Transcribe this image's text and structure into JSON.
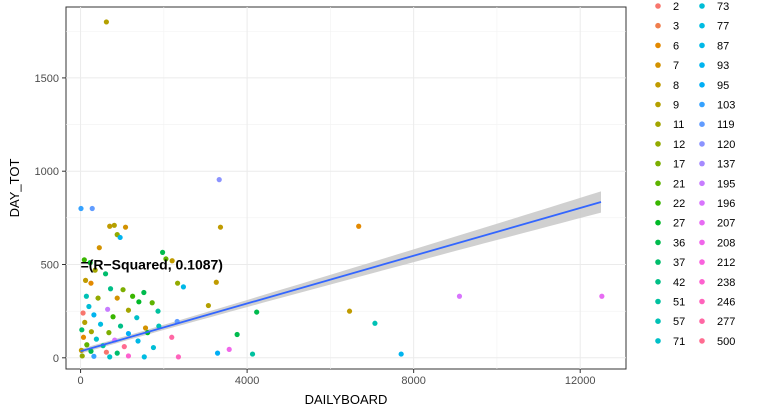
{
  "chart_data": {
    "type": "scatter",
    "title": "",
    "xlabel": "DAILYBOARD",
    "ylabel": "DAY_TOT",
    "xlim": [
      -350,
      13100
    ],
    "ylim": [
      -60,
      1880
    ],
    "x_ticks": [
      0,
      4000,
      8000,
      12000
    ],
    "x_tick_labels": [
      "0",
      "4000",
      "8000",
      "12000"
    ],
    "y_ticks": [
      0,
      500,
      1000,
      1500
    ],
    "y_tick_labels": [
      "0",
      "500",
      "1000",
      "1500"
    ],
    "grid": true,
    "legend_position": "right",
    "annotation": "=(R−Squared, 0.1087)",
    "annotation_pos": [
      0,
      500
    ],
    "regression_line": {
      "x": [
        0,
        12500
      ],
      "y": [
        35,
        835
      ],
      "color": "#3366ff",
      "band_color": "#c8c8c8"
    },
    "legend": {
      "col1": [
        {
          "label": "2",
          "color": "#f8766d"
        },
        {
          "label": "3",
          "color": "#f07e4d"
        },
        {
          "label": "6",
          "color": "#e38900"
        },
        {
          "label": "7",
          "color": "#d39200"
        },
        {
          "label": "8",
          "color": "#c09b00"
        },
        {
          "label": "9",
          "color": "#b4a000"
        },
        {
          "label": "11",
          "color": "#a3a500"
        },
        {
          "label": "12",
          "color": "#93aa00"
        },
        {
          "label": "17",
          "color": "#7cae00"
        },
        {
          "label": "21",
          "color": "#5eb300"
        },
        {
          "label": "22",
          "color": "#39b600"
        },
        {
          "label": "27",
          "color": "#00b928"
        },
        {
          "label": "36",
          "color": "#00bb4e"
        },
        {
          "label": "37",
          "color": "#00bd6c"
        },
        {
          "label": "42",
          "color": "#00bf86"
        },
        {
          "label": "51",
          "color": "#00c19f"
        },
        {
          "label": "57",
          "color": "#00c1b5"
        },
        {
          "label": "71",
          "color": "#00c0c8"
        }
      ],
      "col2": [
        {
          "label": "73",
          "color": "#00bdd6"
        },
        {
          "label": "77",
          "color": "#00bce2"
        },
        {
          "label": "87",
          "color": "#00b8e7"
        },
        {
          "label": "93",
          "color": "#00b4ef"
        },
        {
          "label": "95",
          "color": "#00aef5"
        },
        {
          "label": "103",
          "color": "#35a2ff"
        },
        {
          "label": "119",
          "color": "#619cff"
        },
        {
          "label": "120",
          "color": "#8b93ff"
        },
        {
          "label": "137",
          "color": "#a58aff"
        },
        {
          "label": "195",
          "color": "#c77cff"
        },
        {
          "label": "196",
          "color": "#d874fd"
        },
        {
          "label": "207",
          "color": "#e76bf3"
        },
        {
          "label": "208",
          "color": "#f066ea"
        },
        {
          "label": "212",
          "color": "#f962dd"
        },
        {
          "label": "238",
          "color": "#fd61cf"
        },
        {
          "label": "246",
          "color": "#ff63bc"
        },
        {
          "label": "277",
          "color": "#ff67a4"
        },
        {
          "label": "500",
          "color": "#ff6c91"
        }
      ]
    },
    "points": [
      {
        "x": 620,
        "y": 1800,
        "color": "#b4a000"
      },
      {
        "x": 3330,
        "y": 955,
        "color": "#8b93ff"
      },
      {
        "x": 10,
        "y": 800,
        "color": "#35a2ff"
      },
      {
        "x": 280,
        "y": 800,
        "color": "#619cff"
      },
      {
        "x": 700,
        "y": 705,
        "color": "#c09b00"
      },
      {
        "x": 810,
        "y": 710,
        "color": "#b4a000"
      },
      {
        "x": 1080,
        "y": 700,
        "color": "#d39200"
      },
      {
        "x": 3360,
        "y": 700,
        "color": "#c09b00"
      },
      {
        "x": 6680,
        "y": 705,
        "color": "#e38900"
      },
      {
        "x": 880,
        "y": 660,
        "color": "#93aa00"
      },
      {
        "x": 950,
        "y": 645,
        "color": "#00b4ef"
      },
      {
        "x": 450,
        "y": 590,
        "color": "#d39200"
      },
      {
        "x": 1970,
        "y": 565,
        "color": "#00bb4e"
      },
      {
        "x": 2050,
        "y": 530,
        "color": "#5eb300"
      },
      {
        "x": 2200,
        "y": 520,
        "color": "#c09b00"
      },
      {
        "x": 90,
        "y": 525,
        "color": "#39b600"
      },
      {
        "x": 230,
        "y": 510,
        "color": "#00b928"
      },
      {
        "x": 350,
        "y": 470,
        "color": "#a3a500"
      },
      {
        "x": 600,
        "y": 450,
        "color": "#00bd6c"
      },
      {
        "x": 120,
        "y": 415,
        "color": "#c09b00"
      },
      {
        "x": 250,
        "y": 400,
        "color": "#e38900"
      },
      {
        "x": 2330,
        "y": 400,
        "color": "#93aa00"
      },
      {
        "x": 3260,
        "y": 405,
        "color": "#c09b00"
      },
      {
        "x": 2470,
        "y": 380,
        "color": "#00b8e7"
      },
      {
        "x": 720,
        "y": 370,
        "color": "#00bf86"
      },
      {
        "x": 1020,
        "y": 365,
        "color": "#7cae00"
      },
      {
        "x": 1520,
        "y": 350,
        "color": "#00bb4e"
      },
      {
        "x": 140,
        "y": 330,
        "color": "#00c1b5"
      },
      {
        "x": 420,
        "y": 320,
        "color": "#93aa00"
      },
      {
        "x": 880,
        "y": 320,
        "color": "#d39200"
      },
      {
        "x": 1250,
        "y": 330,
        "color": "#39b600"
      },
      {
        "x": 1400,
        "y": 300,
        "color": "#00b928"
      },
      {
        "x": 1720,
        "y": 295,
        "color": "#5eb300"
      },
      {
        "x": 3070,
        "y": 280,
        "color": "#b4a000"
      },
      {
        "x": 200,
        "y": 275,
        "color": "#00bdd6"
      },
      {
        "x": 650,
        "y": 260,
        "color": "#c77cff"
      },
      {
        "x": 1150,
        "y": 255,
        "color": "#a3a500"
      },
      {
        "x": 1860,
        "y": 250,
        "color": "#00c19f"
      },
      {
        "x": 4230,
        "y": 245,
        "color": "#00bb4e"
      },
      {
        "x": 6460,
        "y": 250,
        "color": "#c09b00"
      },
      {
        "x": 9100,
        "y": 330,
        "color": "#d874fd"
      },
      {
        "x": 12520,
        "y": 330,
        "color": "#e76bf3"
      },
      {
        "x": 60,
        "y": 240,
        "color": "#f8766d"
      },
      {
        "x": 320,
        "y": 230,
        "color": "#00b4ef"
      },
      {
        "x": 780,
        "y": 220,
        "color": "#39b600"
      },
      {
        "x": 1350,
        "y": 215,
        "color": "#00c0c8"
      },
      {
        "x": 2320,
        "y": 195,
        "color": "#619cff"
      },
      {
        "x": 7070,
        "y": 185,
        "color": "#00c1b5"
      },
      {
        "x": 100,
        "y": 190,
        "color": "#b4a000"
      },
      {
        "x": 480,
        "y": 180,
        "color": "#00bce2"
      },
      {
        "x": 960,
        "y": 170,
        "color": "#00bf86"
      },
      {
        "x": 1560,
        "y": 160,
        "color": "#d39200"
      },
      {
        "x": 1880,
        "y": 170,
        "color": "#00c1b5"
      },
      {
        "x": 30,
        "y": 150,
        "color": "#00bd6c"
      },
      {
        "x": 260,
        "y": 140,
        "color": "#a3a500"
      },
      {
        "x": 680,
        "y": 135,
        "color": "#7cae00"
      },
      {
        "x": 1150,
        "y": 130,
        "color": "#00aef5"
      },
      {
        "x": 1610,
        "y": 135,
        "color": "#00b928"
      },
      {
        "x": 3760,
        "y": 125,
        "color": "#00bb4e"
      },
      {
        "x": 2190,
        "y": 110,
        "color": "#ff67a4"
      },
      {
        "x": 70,
        "y": 110,
        "color": "#e38900"
      },
      {
        "x": 380,
        "y": 100,
        "color": "#00c0c8"
      },
      {
        "x": 820,
        "y": 95,
        "color": "#d874fd"
      },
      {
        "x": 1380,
        "y": 90,
        "color": "#00b8e7"
      },
      {
        "x": 150,
        "y": 70,
        "color": "#5eb300"
      },
      {
        "x": 540,
        "y": 65,
        "color": "#00c19f"
      },
      {
        "x": 1050,
        "y": 60,
        "color": "#ff6c91"
      },
      {
        "x": 1750,
        "y": 55,
        "color": "#00bdd6"
      },
      {
        "x": 3570,
        "y": 45,
        "color": "#f066ea"
      },
      {
        "x": 3290,
        "y": 25,
        "color": "#00aef5"
      },
      {
        "x": 4130,
        "y": 20,
        "color": "#00c19f"
      },
      {
        "x": 7700,
        "y": 20,
        "color": "#00b4ef"
      },
      {
        "x": 20,
        "y": 40,
        "color": "#c09b00"
      },
      {
        "x": 250,
        "y": 35,
        "color": "#00bb4e"
      },
      {
        "x": 620,
        "y": 30,
        "color": "#f8766d"
      },
      {
        "x": 880,
        "y": 25,
        "color": "#00bd6c"
      },
      {
        "x": 1150,
        "y": 10,
        "color": "#fd61cf"
      },
      {
        "x": 1530,
        "y": 5,
        "color": "#00bce2"
      },
      {
        "x": 2350,
        "y": 5,
        "color": "#ff63bc"
      },
      {
        "x": 40,
        "y": 10,
        "color": "#93aa00"
      },
      {
        "x": 320,
        "y": 8,
        "color": "#35a2ff"
      },
      {
        "x": 700,
        "y": 5,
        "color": "#00c0c8"
      }
    ]
  }
}
